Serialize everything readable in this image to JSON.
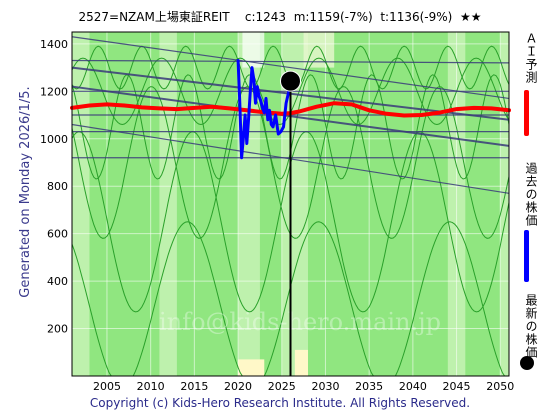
{
  "header": {
    "title": "2527=NZAM上場東証REIT    c:1243  m:1159(-7%)  t:1136(-9%)  ★★"
  },
  "side_label": "Generated on Monday 2026/1/5.",
  "watermark": "info@kids-hero.main.jp",
  "footer": "Copyright (c) Kids-Hero Research Institute. All Rights Reserved.",
  "legend": {
    "ai_forecast": "ＡＩ予測",
    "past_price": "過去の株価",
    "latest_price": "最新の株価"
  },
  "colors": {
    "background": "#90e680",
    "band": "#c9f4b8",
    "green_line": "#2aa02a",
    "trend_line": "#3a3a7a",
    "forecast": "#ff0000",
    "past": "#0000ff",
    "marker": "#000000"
  },
  "chart_data": {
    "type": "line",
    "xlim": [
      2001,
      2051
    ],
    "ylim": [
      0,
      1450
    ],
    "x_ticks": [
      2005,
      2010,
      2015,
      2020,
      2025,
      2030,
      2035,
      2040,
      2045,
      2050
    ],
    "y_ticks": [
      200,
      400,
      600,
      800,
      1000,
      1200,
      1400
    ],
    "grid": true,
    "latest": {
      "x": 2026.0,
      "y": 1243
    },
    "series": [
      {
        "name": "ＡＩ予測",
        "color": "#ff0000",
        "x": [
          2001,
          2003,
          2005,
          2007,
          2009,
          2011,
          2013,
          2015,
          2017,
          2019,
          2021,
          2023,
          2025,
          2026,
          2027,
          2029,
          2031,
          2033,
          2035,
          2037,
          2039,
          2041,
          2043,
          2045,
          2047,
          2049,
          2051
        ],
        "y": [
          1130,
          1140,
          1145,
          1140,
          1132,
          1128,
          1125,
          1130,
          1135,
          1128,
          1120,
          1112,
          1105,
          1108,
          1115,
          1135,
          1150,
          1145,
          1120,
          1105,
          1098,
          1100,
          1110,
          1125,
          1130,
          1128,
          1120
        ]
      },
      {
        "name": "過去の株価",
        "color": "#0000ff",
        "x": [
          2020.0,
          2020.2,
          2020.4,
          2020.6,
          2020.8,
          2021.0,
          2021.2,
          2021.4,
          2021.6,
          2021.8,
          2022.0,
          2022.2,
          2022.4,
          2022.6,
          2022.8,
          2023.0,
          2023.2,
          2023.4,
          2023.6,
          2023.8,
          2024.0,
          2024.3,
          2024.6,
          2024.9,
          2025.2,
          2025.5,
          2025.8,
          2026.0
        ],
        "y": [
          1330,
          1150,
          920,
          1000,
          1100,
          980,
          1080,
          1200,
          1300,
          1250,
          1150,
          1220,
          1180,
          1160,
          1130,
          1110,
          1170,
          1080,
          1120,
          1060,
          1050,
          1100,
          1020,
          1030,
          1050,
          1150,
          1200,
          1243
        ]
      }
    ],
    "trend_lines": [
      {
        "x": [
          2001,
          2051
        ],
        "y": [
          1300,
          1080
        ]
      },
      {
        "x": [
          2001,
          2051
        ],
        "y": [
          1220,
          970
        ]
      },
      {
        "x": [
          2001,
          2051
        ],
        "y": [
          1060,
          770
        ]
      },
      {
        "x": [
          2001,
          2051
        ],
        "y": [
          1430,
          1170
        ]
      },
      {
        "x": [
          2001,
          2051
        ],
        "y": [
          1330,
          1320
        ]
      },
      {
        "x": [
          2001,
          2051
        ],
        "y": [
          1200,
          1200
        ]
      },
      {
        "x": [
          2001,
          2051
        ],
        "y": [
          1100,
          1100
        ]
      },
      {
        "x": [
          2001,
          2051
        ],
        "y": [
          1030,
          1030
        ]
      },
      {
        "x": [
          2001,
          2051
        ],
        "y": [
          920,
          920
        ]
      }
    ]
  }
}
